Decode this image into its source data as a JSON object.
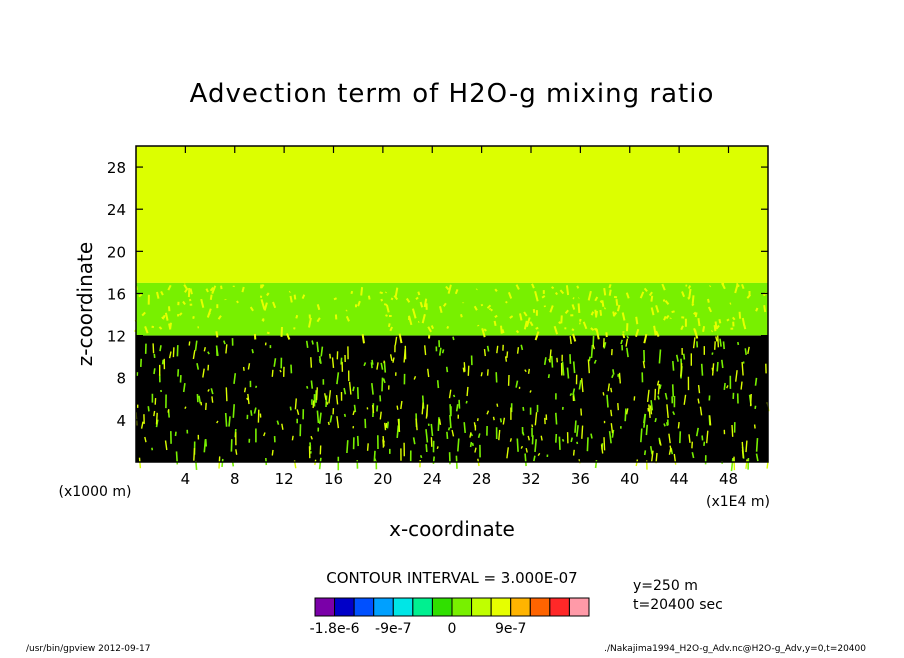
{
  "chart_data": {
    "type": "heatmap",
    "title": "Advection term of H2O-g mixing ratio",
    "xlabel": "x-coordinate",
    "ylabel": "z-coordinate",
    "x_unit_label": "(x1E4 m)",
    "y_unit_label": "(x1000 m)",
    "xlim": [
      0,
      51.2
    ],
    "ylim": [
      0,
      30
    ],
    "x_ticks": [
      "4",
      "8",
      "12",
      "16",
      "20",
      "24",
      "28",
      "32",
      "36",
      "40",
      "44",
      "48"
    ],
    "x_tick_values": [
      4,
      8,
      12,
      16,
      20,
      24,
      28,
      32,
      36,
      40,
      44,
      48
    ],
    "y_ticks": [
      "4",
      "8",
      "12",
      "16",
      "20",
      "24",
      "28"
    ],
    "y_tick_values": [
      4,
      8,
      12,
      16,
      20,
      24,
      28
    ],
    "field_regions": [
      {
        "z_from": 17,
        "z_to": 30,
        "description": "near-zero field",
        "color": "#dcff00"
      },
      {
        "z_from": 12,
        "z_to": 17,
        "description": "small positive/negative fluctuations",
        "color": "#78f000"
      },
      {
        "z_from": 0,
        "z_to": 12,
        "description": "dense contours of strong fluctuations",
        "color": "#000000"
      }
    ],
    "contour_interval_label": "CONTOUR INTERVAL = 3.000E-07",
    "colorbar": {
      "colors": [
        "#7a00a8",
        "#0000c8",
        "#0050ff",
        "#00a0ff",
        "#00e6e6",
        "#00f090",
        "#30e000",
        "#78f000",
        "#c0ff00",
        "#e6ff00",
        "#ffb400",
        "#ff6400",
        "#ff2828",
        "#ff9aa8"
      ],
      "labels": [
        "-1.8e-6",
        "-9e-7",
        "0",
        "9e-7"
      ],
      "label_values": [
        -1.8e-06,
        -9e-07,
        0,
        9e-07
      ],
      "min": -2.1e-06,
      "max": 2.1e-06
    },
    "info_lines": [
      "y=250 m",
      "t=20400 sec"
    ]
  },
  "footer": {
    "left": "/usr/bin/gpview  2012-09-17",
    "right": "./Nakajima1994_H2O-g_Adv.nc@H2O-g_Adv,y=0,t=20400"
  }
}
